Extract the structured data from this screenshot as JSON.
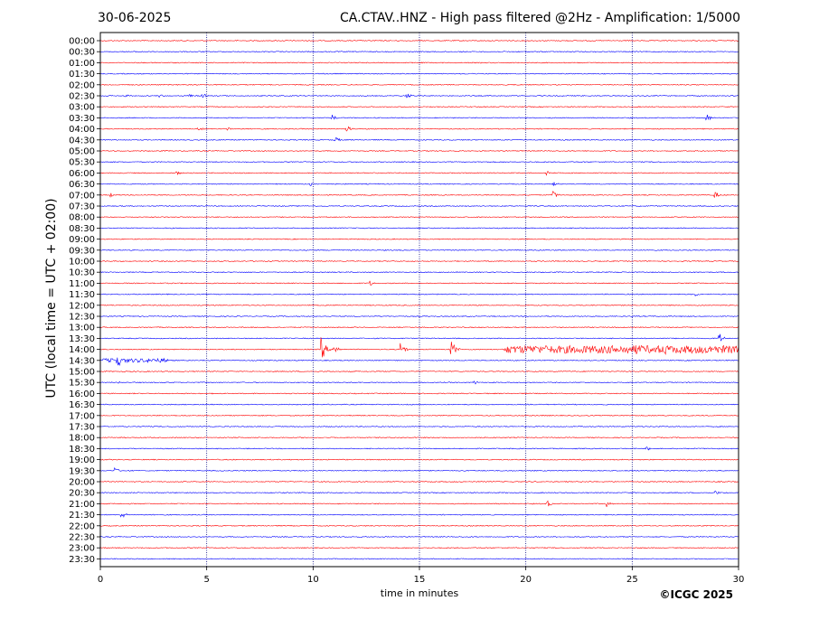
{
  "header": {
    "date": "30-06-2025",
    "title": "CA.CTAV..HNZ - High pass filtered @2Hz - Amplification: 1/5000"
  },
  "credit": "©ICGC 2025",
  "chart_data": {
    "type": "line",
    "title": "CA.CTAV..HNZ - High pass filtered @2Hz - Amplification: 1/5000",
    "subtitle": "30-06-2025",
    "xlabel": "time in minutes",
    "ylabel": "UTC (local time = UTC + 02:00)",
    "xlim": [
      0,
      30
    ],
    "xticks": [
      0,
      5,
      10,
      15,
      20,
      25,
      30
    ],
    "vertical_gridlines": [
      5,
      10,
      15,
      20,
      25
    ],
    "grid": true,
    "row_labels": [
      "00:00",
      "00:30",
      "01:00",
      "01:30",
      "02:00",
      "02:30",
      "03:00",
      "03:30",
      "04:00",
      "04:30",
      "05:00",
      "05:30",
      "06:00",
      "06:30",
      "07:00",
      "07:30",
      "08:00",
      "08:30",
      "09:00",
      "09:30",
      "10:00",
      "10:30",
      "11:00",
      "11:30",
      "12:00",
      "12:30",
      "13:00",
      "13:30",
      "14:00",
      "14:30",
      "15:00",
      "15:30",
      "16:00",
      "16:30",
      "17:00",
      "17:30",
      "18:00",
      "18:30",
      "19:00",
      "19:30",
      "20:00",
      "20:30",
      "21:00",
      "21:30",
      "22:00",
      "22:30",
      "23:00",
      "23:30"
    ],
    "colors": {
      "even": "#ff0000",
      "odd": "#0000ff",
      "grid": "#000080"
    },
    "events": [
      {
        "row": "02:30",
        "minute": 1.2,
        "amp": 0.4
      },
      {
        "row": "02:30",
        "minute": 2.8,
        "amp": 0.3
      },
      {
        "row": "02:30",
        "minute": 4.2,
        "amp": 0.3
      },
      {
        "row": "02:30",
        "minute": 4.8,
        "amp": 0.5
      },
      {
        "row": "02:30",
        "minute": 14.4,
        "amp": 0.7
      },
      {
        "row": "03:30",
        "minute": 10.9,
        "amp": 0.6
      },
      {
        "row": "03:30",
        "minute": 28.5,
        "amp": 0.8
      },
      {
        "row": "04:00",
        "minute": 4.6,
        "amp": 0.5
      },
      {
        "row": "04:00",
        "minute": 6.0,
        "amp": 0.4
      },
      {
        "row": "04:00",
        "minute": 11.6,
        "amp": 0.6
      },
      {
        "row": "04:30",
        "minute": 11.0,
        "amp": 0.8
      },
      {
        "row": "06:00",
        "minute": 3.6,
        "amp": 0.4
      },
      {
        "row": "06:00",
        "minute": 21.0,
        "amp": 0.5
      },
      {
        "row": "06:30",
        "minute": 9.9,
        "amp": 0.4
      },
      {
        "row": "06:30",
        "minute": 21.3,
        "amp": 0.5
      },
      {
        "row": "07:00",
        "minute": 0.5,
        "amp": 0.4
      },
      {
        "row": "07:00",
        "minute": 21.3,
        "amp": 0.8
      },
      {
        "row": "07:00",
        "minute": 28.9,
        "amp": 0.7
      },
      {
        "row": "11:00",
        "minute": 12.7,
        "amp": 0.5
      },
      {
        "row": "11:30",
        "minute": 28.0,
        "amp": 0.4
      },
      {
        "row": "13:30",
        "minute": 29.1,
        "amp": 1.0
      },
      {
        "row": "14:00",
        "minute": 10.4,
        "amp": 2.4
      },
      {
        "row": "14:00",
        "minute": 11.0,
        "amp": 1.2
      },
      {
        "row": "14:00",
        "minute": 14.1,
        "amp": 1.6
      },
      {
        "row": "14:00",
        "minute": 16.5,
        "amp": 1.8
      },
      {
        "row": "14:00",
        "minute": 25.2,
        "amp": 1.2
      },
      {
        "row": "14:00",
        "minute": 26.5,
        "amp": 1.4
      },
      {
        "row": "14:30",
        "minute": 0.8,
        "amp": 1.6
      },
      {
        "row": "15:30",
        "minute": 0.8,
        "amp": 0.3
      },
      {
        "row": "15:30",
        "minute": 17.6,
        "amp": 0.4
      },
      {
        "row": "18:30",
        "minute": 25.7,
        "amp": 0.4
      },
      {
        "row": "19:30",
        "minute": 0.7,
        "amp": 0.6
      },
      {
        "row": "20:30",
        "minute": 28.9,
        "amp": 0.5
      },
      {
        "row": "21:00",
        "minute": 21.0,
        "amp": 0.7
      },
      {
        "row": "21:00",
        "minute": 23.8,
        "amp": 0.6
      },
      {
        "row": "21:30",
        "minute": 1.0,
        "amp": 0.8
      }
    ],
    "noisy_segments": [
      {
        "row": "14:00",
        "from": 19.0,
        "to": 30.0,
        "amp": 0.7
      },
      {
        "row": "14:30",
        "from": 0.0,
        "to": 3.2,
        "amp": 0.35
      }
    ]
  }
}
